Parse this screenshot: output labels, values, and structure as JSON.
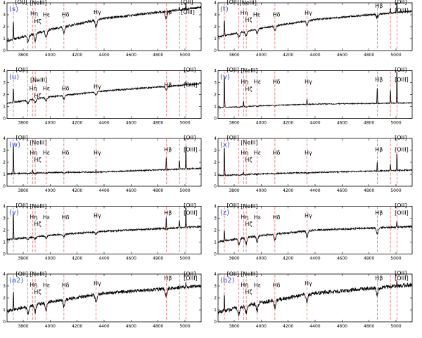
{
  "chart_data": {
    "type": "line",
    "layout": "5 rows x 2 columns of spectrum panels",
    "x_ticks": [
      3800,
      4000,
      4200,
      4400,
      4600,
      4800,
      5000
    ],
    "y_ticks": [
      0,
      1,
      2,
      3,
      4
    ],
    "xlim": [
      3680,
      5120
    ],
    "ylim": [
      0,
      4
    ],
    "line_color": "#000000",
    "marker_color": "#e23a3a",
    "marker_lines": [
      3727,
      3835,
      3869,
      3889,
      3970,
      4102,
      4340,
      4861,
      4959,
      5007
    ],
    "label_map": {
      "OII": "[OII]",
      "NeIII": "[NeIII]",
      "OIII": "[OIII]",
      "Heta": "Hη",
      "Hzeta": "Hζ",
      "Heps": "Hε",
      "Hdelta": "Hδ",
      "Hgamma": "Hγ",
      "Hbeta": "Hβ"
    },
    "panels": [
      {
        "id": "s",
        "letter": "(s)",
        "continuum": [
          1.0,
          2.7,
          3.6
        ],
        "noise": 0.1,
        "balmer_depth": 0.6,
        "emission": [
          {
            "x": 3727,
            "h": 1.7
          },
          {
            "x": 5007,
            "h": 0.6
          },
          {
            "x": 4959,
            "h": 0.3
          }
        ],
        "labels": [
          {
            "key": "OII",
            "x": 3740,
            "y": 3.9
          },
          {
            "key": "NeIII",
            "x": 3848,
            "y": 3.85
          },
          {
            "key": "Heta",
            "x": 3852,
            "y": 2.95
          },
          {
            "key": "Hzeta",
            "x": 3880,
            "y": 2.3
          },
          {
            "key": "Heps",
            "x": 3945,
            "y": 2.85
          },
          {
            "key": "Hdelta",
            "x": 4085,
            "y": 2.85
          },
          {
            "key": "Hgamma",
            "x": 4322,
            "y": 3.05
          },
          {
            "key": "Hbeta",
            "x": 4845,
            "y": 3.05
          },
          {
            "key": "OII",
            "x": 4970,
            "y": 3.9
          },
          {
            "key": "OIII",
            "x": 4970,
            "y": 3.05
          }
        ]
      },
      {
        "id": "t",
        "letter": "(t)",
        "continuum": [
          1.3,
          2.6,
          3.3
        ],
        "noise": 0.07,
        "balmer_depth": 0.4,
        "emission": [
          {
            "x": 3727,
            "h": 1.5
          },
          {
            "x": 5007,
            "h": 1.2
          },
          {
            "x": 4959,
            "h": 0.5
          },
          {
            "x": 4861,
            "h": 0.4
          }
        ],
        "labels": [
          {
            "key": "OII",
            "x": 3745,
            "y": 3.9
          },
          {
            "key": "NeIII",
            "x": 3840,
            "y": 3.85
          },
          {
            "key": "Heta",
            "x": 3845,
            "y": 3.0
          },
          {
            "key": "Hzeta",
            "x": 3880,
            "y": 2.4
          },
          {
            "key": "Heps",
            "x": 3940,
            "y": 2.85
          },
          {
            "key": "Hdelta",
            "x": 4085,
            "y": 2.85
          },
          {
            "key": "Hgamma",
            "x": 4322,
            "y": 3.0
          },
          {
            "key": "Hbeta",
            "x": 4845,
            "y": 3.6
          },
          {
            "key": "OII",
            "x": 4990,
            "y": 3.9
          },
          {
            "key": "OIII",
            "x": 4990,
            "y": 3.2
          }
        ]
      },
      {
        "id": "u",
        "letter": "(u)",
        "continuum": [
          1.4,
          2.3,
          2.9
        ],
        "noise": 0.06,
        "balmer_depth": 0.3,
        "emission": [
          {
            "x": 3727,
            "h": 1.2
          },
          {
            "x": 5007,
            "h": 0.35
          }
        ],
        "labels": [
          {
            "key": "OII",
            "x": 3745,
            "y": 3.9
          },
          {
            "key": "NeIII",
            "x": 3852,
            "y": 3.05
          },
          {
            "key": "Heta",
            "x": 3845,
            "y": 2.35
          },
          {
            "key": "Hzeta",
            "x": 3880,
            "y": 1.75
          },
          {
            "key": "Heps",
            "x": 3945,
            "y": 2.35
          },
          {
            "key": "Hdelta",
            "x": 4085,
            "y": 2.35
          },
          {
            "key": "Hgamma",
            "x": 4322,
            "y": 2.5
          },
          {
            "key": "Hbeta",
            "x": 4845,
            "y": 2.65
          },
          {
            "key": "OII",
            "x": 4990,
            "y": 3.9
          },
          {
            "key": "OIII",
            "x": 4990,
            "y": 2.65
          }
        ]
      },
      {
        "id": "v",
        "letter": "(v)",
        "continuum": [
          0.95,
          1.2,
          1.3
        ],
        "noise": 0.04,
        "balmer_depth": 0.05,
        "emission": [
          {
            "x": 3727,
            "h": 3.0
          },
          {
            "x": 5007,
            "h": 3.0
          },
          {
            "x": 4959,
            "h": 1.2
          },
          {
            "x": 4861,
            "h": 1.5
          },
          {
            "x": 3869,
            "h": 0.5
          },
          {
            "x": 4340,
            "h": 0.5
          }
        ],
        "labels": [
          {
            "key": "OII",
            "x": 3745,
            "y": 3.9
          },
          {
            "key": "NeIII",
            "x": 3848,
            "y": 3.85
          },
          {
            "key": "Heta",
            "x": 3848,
            "y": 2.9
          },
          {
            "key": "Hzeta",
            "x": 3880,
            "y": 2.3
          },
          {
            "key": "Heps",
            "x": 3945,
            "y": 2.9
          },
          {
            "key": "Hdelta",
            "x": 4085,
            "y": 2.9
          },
          {
            "key": "Hgamma",
            "x": 4322,
            "y": 2.9
          },
          {
            "key": "Hbeta",
            "x": 4845,
            "y": 3.1
          },
          {
            "key": "OII",
            "x": 4990,
            "y": 3.9
          },
          {
            "key": "OIII",
            "x": 4990,
            "y": 3.1
          }
        ]
      },
      {
        "id": "w",
        "letter": "(w)",
        "continuum": [
          1.1,
          1.2,
          1.5
        ],
        "noise": 0.05,
        "balmer_depth": 0.05,
        "emission": [
          {
            "x": 3727,
            "h": 2.7
          },
          {
            "x": 5007,
            "h": 2.2
          },
          {
            "x": 4959,
            "h": 0.8
          },
          {
            "x": 4861,
            "h": 1.2
          },
          {
            "x": 3869,
            "h": 0.3
          },
          {
            "x": 4340,
            "h": 0.3
          }
        ],
        "labels": [
          {
            "key": "OII",
            "x": 3745,
            "y": 3.9
          },
          {
            "key": "NeIII",
            "x": 3848,
            "y": 3.5
          },
          {
            "key": "Heta",
            "x": 3848,
            "y": 2.65
          },
          {
            "key": "Hzeta",
            "x": 3880,
            "y": 2.05
          },
          {
            "key": "Heps",
            "x": 3945,
            "y": 2.65
          },
          {
            "key": "Hdelta",
            "x": 4085,
            "y": 2.65
          },
          {
            "key": "Hgamma",
            "x": 4322,
            "y": 2.65
          },
          {
            "key": "Hbeta",
            "x": 4845,
            "y": 2.9
          },
          {
            "key": "OII",
            "x": 4990,
            "y": 3.9
          },
          {
            "key": "OIII",
            "x": 4990,
            "y": 2.9
          }
        ]
      },
      {
        "id": "x",
        "letter": "(x)",
        "continuum": [
          0.95,
          1.15,
          1.35
        ],
        "noise": 0.05,
        "balmer_depth": 0.05,
        "emission": [
          {
            "x": 3727,
            "h": 2.6
          },
          {
            "x": 5007,
            "h": 1.6
          },
          {
            "x": 4959,
            "h": 0.6
          },
          {
            "x": 4861,
            "h": 0.9
          },
          {
            "x": 3869,
            "h": 0.25
          }
        ],
        "labels": [
          {
            "key": "OII",
            "x": 3745,
            "y": 3.9
          },
          {
            "key": "NeIII",
            "x": 3848,
            "y": 3.5
          },
          {
            "key": "Heta",
            "x": 3848,
            "y": 2.65
          },
          {
            "key": "Hzeta",
            "x": 3880,
            "y": 2.05
          },
          {
            "key": "Heps",
            "x": 3945,
            "y": 2.65
          },
          {
            "key": "Hdelta",
            "x": 4085,
            "y": 2.65
          },
          {
            "key": "Hgamma",
            "x": 4322,
            "y": 2.65
          },
          {
            "key": "Hbeta",
            "x": 4845,
            "y": 2.9
          },
          {
            "key": "OII",
            "x": 4990,
            "y": 3.9
          },
          {
            "key": "OIII",
            "x": 4990,
            "y": 2.9
          }
        ]
      },
      {
        "id": "y",
        "letter": "(y)",
        "continuum": [
          1.3,
          1.9,
          2.3
        ],
        "noise": 0.07,
        "balmer_depth": 0.2,
        "emission": [
          {
            "x": 3727,
            "h": 2.4
          },
          {
            "x": 5007,
            "h": 1.8
          },
          {
            "x": 4959,
            "h": 0.7
          },
          {
            "x": 4861,
            "h": 1.3
          }
        ],
        "labels": [
          {
            "key": "OII",
            "x": 3745,
            "y": 3.9
          },
          {
            "key": "NeIII",
            "x": 3848,
            "y": 3.85
          },
          {
            "key": "Heta",
            "x": 3848,
            "y": 2.95
          },
          {
            "key": "Hzeta",
            "x": 3880,
            "y": 2.35
          },
          {
            "key": "Heps",
            "x": 3945,
            "y": 2.9
          },
          {
            "key": "Hdelta",
            "x": 4085,
            "y": 2.9
          },
          {
            "key": "Hgamma",
            "x": 4322,
            "y": 3.05
          },
          {
            "key": "Hbeta",
            "x": 4845,
            "y": 3.3
          },
          {
            "key": "OII",
            "x": 4990,
            "y": 3.9
          },
          {
            "key": "OIII",
            "x": 4990,
            "y": 3.3
          }
        ]
      },
      {
        "id": "z",
        "letter": "(z)",
        "continuum": [
          1.2,
          2.0,
          2.3
        ],
        "noise": 0.08,
        "balmer_depth": 0.5,
        "emission": [
          {
            "x": 3727,
            "h": 1.0
          },
          {
            "x": 5007,
            "h": 0.5
          }
        ],
        "labels": [
          {
            "key": "OII",
            "x": 3745,
            "y": 3.9
          },
          {
            "key": "NeIII",
            "x": 3848,
            "y": 3.85
          },
          {
            "key": "Heta",
            "x": 3848,
            "y": 2.95
          },
          {
            "key": "Hzeta",
            "x": 3880,
            "y": 2.35
          },
          {
            "key": "Heps",
            "x": 3945,
            "y": 2.9
          },
          {
            "key": "Hdelta",
            "x": 4085,
            "y": 2.9
          },
          {
            "key": "Hgamma",
            "x": 4322,
            "y": 3.05
          },
          {
            "key": "Hbeta",
            "x": 4845,
            "y": 3.3
          },
          {
            "key": "OII",
            "x": 4990,
            "y": 3.9
          },
          {
            "key": "OIII",
            "x": 4990,
            "y": 3.3
          }
        ]
      },
      {
        "id": "a2",
        "letter": "(a2)",
        "continuum": [
          1.1,
          2.4,
          3.0
        ],
        "noise": 0.14,
        "balmer_depth": 0.6,
        "emission": [
          {
            "x": 3727,
            "h": 1.6
          },
          {
            "x": 5007,
            "h": 0.4
          }
        ],
        "labels": [
          {
            "key": "OII",
            "x": 3745,
            "y": 3.85
          },
          {
            "key": "NeIII",
            "x": 3848,
            "y": 3.85
          },
          {
            "key": "Heta",
            "x": 3848,
            "y": 2.95
          },
          {
            "key": "Hzeta",
            "x": 3880,
            "y": 2.35
          },
          {
            "key": "Heps",
            "x": 3945,
            "y": 2.9
          },
          {
            "key": "Hdelta",
            "x": 4085,
            "y": 2.9
          },
          {
            "key": "Hgamma",
            "x": 4322,
            "y": 3.05
          },
          {
            "key": "Hbeta",
            "x": 4845,
            "y": 3.5
          },
          {
            "key": "OII",
            "x": 4990,
            "y": 3.85
          },
          {
            "key": "OIII",
            "x": 4990,
            "y": 3.5
          }
        ]
      },
      {
        "id": "b2",
        "letter": "(b2)",
        "continuum": [
          1.0,
          2.4,
          3.1
        ],
        "noise": 0.16,
        "balmer_depth": 0.6,
        "emission": [
          {
            "x": 3727,
            "h": 1.4
          },
          {
            "x": 5007,
            "h": 0.4
          }
        ],
        "labels": [
          {
            "key": "OII",
            "x": 3745,
            "y": 3.85
          },
          {
            "key": "NeIII",
            "x": 3848,
            "y": 3.85
          },
          {
            "key": "Heta",
            "x": 3848,
            "y": 2.95
          },
          {
            "key": "Hzeta",
            "x": 3880,
            "y": 2.35
          },
          {
            "key": "Heps",
            "x": 3945,
            "y": 2.9
          },
          {
            "key": "Hdelta",
            "x": 4085,
            "y": 2.9
          },
          {
            "key": "Hgamma",
            "x": 4322,
            "y": 3.05
          },
          {
            "key": "Hbeta",
            "x": 4845,
            "y": 3.5
          },
          {
            "key": "OII",
            "x": 4990,
            "y": 3.9
          },
          {
            "key": "OIII",
            "x": 4990,
            "y": 3.5
          }
        ]
      }
    ]
  }
}
